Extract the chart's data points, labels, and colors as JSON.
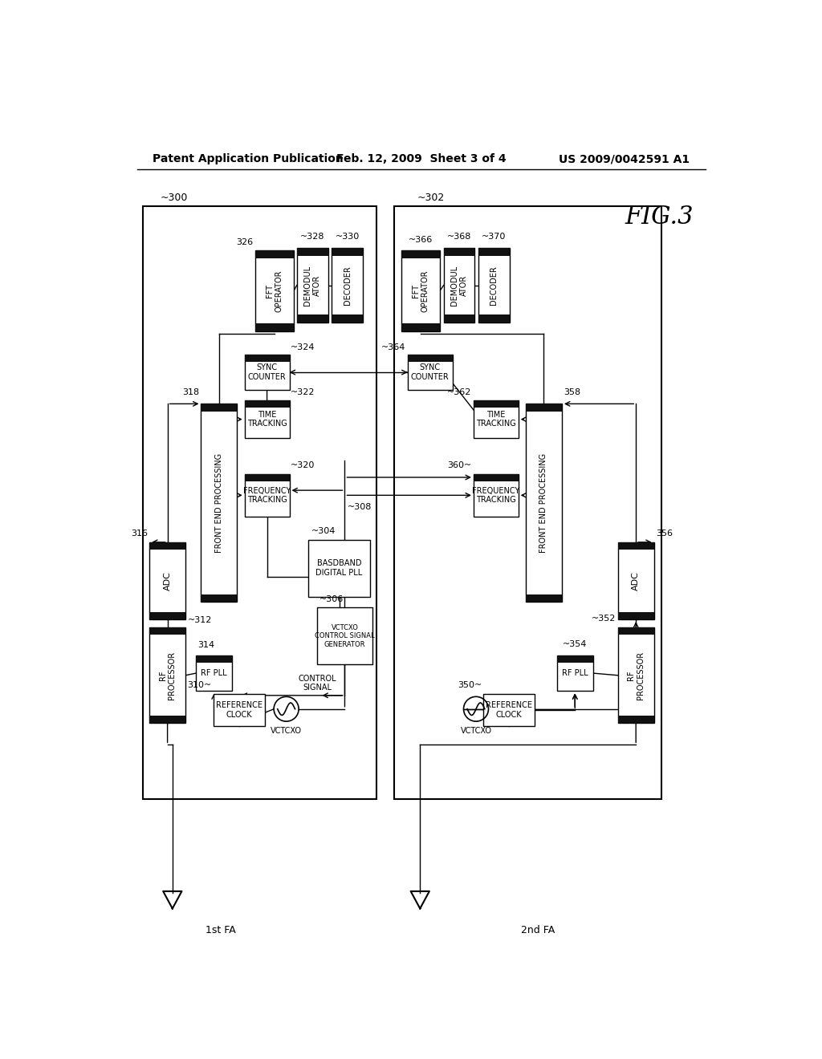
{
  "bg_color": "#ffffff",
  "title_left": "Patent Application Publication",
  "title_center": "Feb. 12, 2009  Sheet 3 of 4",
  "title_right": "US 2009/0042591 A1",
  "fig_label": "FIG.3",
  "header_fontsize": 10,
  "fig_label_fontsize": 22
}
